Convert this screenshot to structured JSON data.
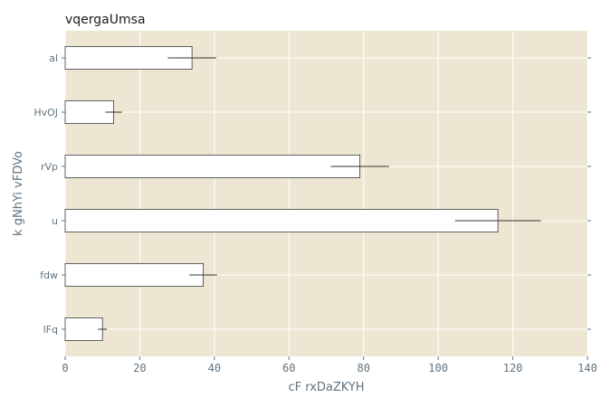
{
  "chart_data": {
    "type": "bar",
    "orientation": "horizontal",
    "title": "vqergaUmsa",
    "xlabel": "cF rxDaZKYH",
    "ylabel": "k gNhYi vFDVo",
    "categories": [
      "al",
      "HvOJ",
      "rVp",
      "u",
      "fdw",
      "lFq"
    ],
    "values": [
      34,
      13,
      79,
      116,
      37,
      10
    ],
    "errors": [
      6.5,
      2.2,
      7.8,
      11.5,
      3.7,
      1.2
    ],
    "xlim": [
      0,
      140
    ],
    "xticks": [
      "0",
      "20",
      "40",
      "60",
      "80",
      "100",
      "120",
      "140"
    ],
    "grid": true,
    "colors": {
      "plot_background": "#ede6d2",
      "bar_fill": "#ffffff",
      "bar_edge": "#3a3a3a",
      "grid": "#ffffff",
      "axis_text": "#5f7380"
    }
  }
}
